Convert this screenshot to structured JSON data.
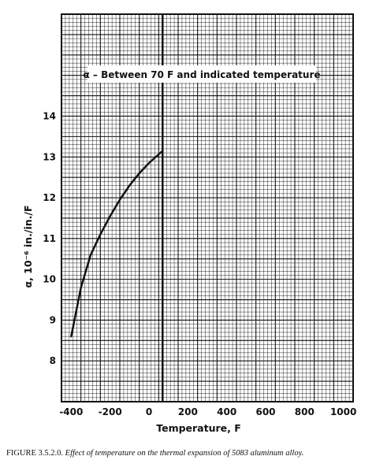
{
  "chart_data": {
    "type": "line",
    "x": [
      -400,
      -350,
      -300,
      -250,
      -200,
      -150,
      -100,
      -50,
      0,
      70
    ],
    "series": [
      {
        "values": [
          8.6,
          9.8,
          10.6,
          11.1,
          11.55,
          11.95,
          12.3,
          12.6,
          12.85,
          13.15
        ]
      }
    ],
    "xlabel": "Temperature, F",
    "ylabel": "α, 10⁻⁶ in./in./F",
    "x_ticks": [
      "-400",
      "-200",
      "0",
      "200",
      "400",
      "600",
      "800",
      "1000"
    ],
    "x_tick_values": [
      -400,
      -200,
      0,
      200,
      400,
      600,
      800,
      1000
    ],
    "y_ticks": [
      "8",
      "9",
      "10",
      "11",
      "12",
      "13",
      "14"
    ],
    "y_tick_values": [
      8,
      9,
      10,
      11,
      12,
      13,
      14
    ],
    "xlim": [
      -450,
      1050
    ],
    "ylim": [
      7,
      16.5
    ],
    "grid": true,
    "annotation": "α – Between 70 F and indicated temperature",
    "reference_line_x": 70
  },
  "caption": {
    "label": "FIGURE 3.5.2.0.",
    "text": "Effect of temperature on the thermal expansion of 5083 aluminum alloy."
  },
  "colors": {
    "ink": "#111111",
    "paper": "#ffffff"
  }
}
